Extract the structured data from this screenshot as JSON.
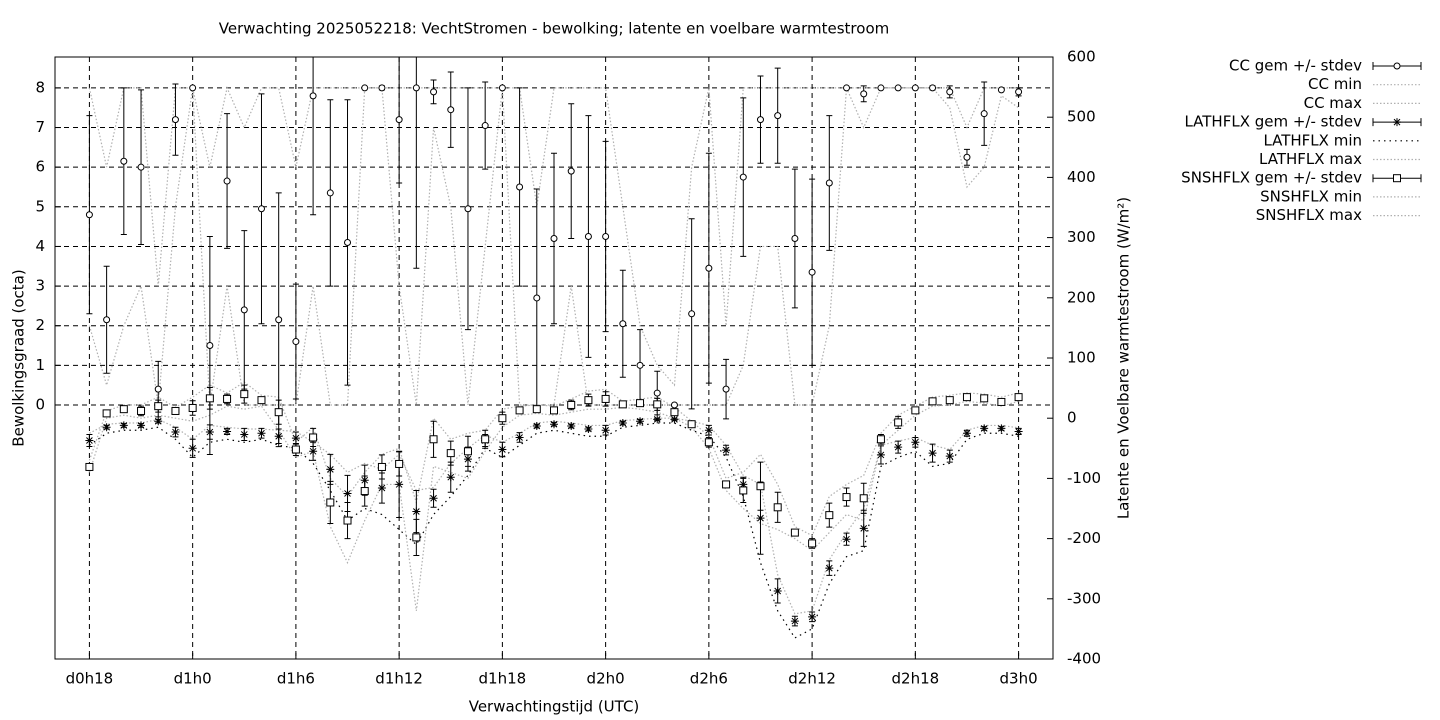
{
  "chart_data": {
    "type": "errorbar-line",
    "title": "Verwachting 2025052218: VechtStromen - bewolking; latente en voelbare warmtestroom",
    "x_label": "Verwachtingstijd (UTC)",
    "y_label": "Bewolkingsgraad (octa)",
    "y2_label": "Latente en Voelbare warmtestroom (W/m²)",
    "x": [
      18,
      19,
      20,
      21,
      22,
      23,
      24,
      25,
      26,
      27,
      28,
      29,
      30,
      31,
      32,
      33,
      34,
      35,
      36,
      37,
      38,
      39,
      40,
      41,
      42,
      43,
      44,
      45,
      46,
      47,
      48,
      49,
      50,
      51,
      52,
      53,
      54,
      55,
      56,
      57,
      58,
      59,
      60,
      61,
      62,
      63,
      64,
      65,
      66,
      67,
      68,
      69,
      70,
      71,
      72
    ],
    "xlim": [
      16,
      74
    ],
    "xticks": [
      {
        "value": 18,
        "label": "d0h18"
      },
      {
        "value": 24,
        "label": "d1h0"
      },
      {
        "value": 30,
        "label": "d1h6"
      },
      {
        "value": 36,
        "label": "d1h12"
      },
      {
        "value": 42,
        "label": "d1h18"
      },
      {
        "value": 48,
        "label": "d2h0"
      },
      {
        "value": 54,
        "label": "d2h6"
      },
      {
        "value": 60,
        "label": "d2h12"
      },
      {
        "value": 66,
        "label": "d2h18"
      },
      {
        "value": 72,
        "label": "d3h0"
      }
    ],
    "ylim": [
      -6.41,
      8.78
    ],
    "yticks": [
      0,
      1,
      2,
      3,
      4,
      5,
      6,
      7,
      8
    ],
    "y2lim": [
      -400,
      600
    ],
    "y2ticks": [
      -400,
      -300,
      -200,
      -100,
      0,
      100,
      200,
      300,
      400,
      500,
      600
    ],
    "grid": true,
    "legend": "right",
    "series": [
      {
        "name": "CC gem +/- stdev",
        "color": "#000000",
        "marker": "circle",
        "axis": "y",
        "values": [
          4.8,
          2.15,
          6.15,
          6.0,
          0.4,
          7.2,
          8.0,
          1.5,
          5.65,
          2.4,
          4.95,
          2.15,
          1.6,
          7.8,
          5.35,
          4.1,
          8.0,
          8.0,
          7.2,
          8.0,
          7.9,
          7.45,
          4.95,
          7.05,
          8.0,
          5.5,
          2.7,
          4.2,
          5.9,
          4.25,
          4.25,
          2.05,
          1.0,
          0.3,
          0.0,
          2.3,
          3.45,
          0.4,
          5.75,
          7.2,
          7.3,
          4.2,
          3.35,
          5.6,
          8.0,
          7.85,
          8.0,
          8.0,
          8.0,
          8.0,
          7.9,
          6.25,
          7.35,
          7.95,
          7.9
        ],
        "errors": [
          2.5,
          1.35,
          1.85,
          1.95,
          0.7,
          0.9,
          0,
          2.75,
          1.7,
          2.0,
          2.9,
          3.2,
          1.45,
          3.0,
          2.35,
          3.6,
          0,
          0.05,
          1.6,
          4.55,
          0.3,
          0.95,
          3.05,
          1.1,
          0,
          2.5,
          2.75,
          2.15,
          1.7,
          3.05,
          2.4,
          1.35,
          0.9,
          0.55,
          0,
          2.4,
          2.9,
          0.75,
          2.0,
          1.1,
          1.2,
          1.75,
          2.35,
          1.7,
          0,
          0.2,
          0,
          0,
          0,
          0.05,
          0.15,
          0.2,
          0.8,
          0,
          0.1
        ]
      },
      {
        "name": "CC min",
        "color": "#b0b0b0",
        "style": "dotted",
        "axis": "y",
        "values": [
          2,
          0.5,
          2,
          3,
          0,
          5,
          8,
          0,
          3,
          0,
          0,
          0,
          0,
          3,
          0,
          0,
          8,
          8,
          3,
          0,
          7,
          5,
          0,
          4,
          8,
          0,
          0,
          0,
          3,
          0,
          0,
          0,
          0,
          0,
          0,
          0,
          0,
          0,
          1,
          4,
          4,
          0,
          0,
          2,
          8,
          7,
          8,
          8,
          8,
          8,
          7.5,
          5.5,
          6,
          7.8,
          7.5
        ]
      },
      {
        "name": "CC max",
        "color": "#b0b0b0",
        "style": "dotted",
        "axis": "y",
        "values": [
          8,
          6,
          8,
          8,
          3,
          8,
          8,
          6,
          8,
          7,
          8,
          8,
          6,
          8,
          8,
          8,
          8,
          8,
          8,
          8,
          8,
          8,
          8,
          8,
          8,
          8,
          5,
          8,
          8,
          8,
          8,
          5,
          2,
          1,
          0.5,
          6,
          8,
          2,
          8,
          8,
          8,
          8,
          8,
          8,
          8,
          8,
          8,
          8,
          8,
          8,
          8,
          7,
          8,
          8,
          8
        ]
      },
      {
        "name": "LATHFLX gem +/- stdev",
        "color": "#000000",
        "marker": "star",
        "axis": "y2",
        "values": [
          -37,
          -15,
          -12,
          -12,
          -5,
          -23,
          -50,
          -23,
          -22,
          -27,
          -25,
          -30,
          -33,
          -55,
          -85,
          -125,
          -103,
          -116,
          -110,
          -155,
          -133,
          -98,
          -68,
          -37,
          -52,
          -32,
          -13,
          -10,
          -13,
          -18,
          -20,
          -8,
          -5,
          -2,
          -2,
          -10,
          -20,
          -53,
          -110,
          -166,
          -287,
          -337,
          -330,
          -249,
          -201,
          -183,
          -61,
          -48,
          -40,
          -58,
          -63,
          -25,
          -17,
          -17,
          -22
        ],
        "errors": [
          10,
          3,
          3,
          3,
          3,
          8,
          15,
          12,
          5,
          10,
          8,
          12,
          10,
          15,
          25,
          30,
          25,
          25,
          55,
          35,
          15,
          25,
          20,
          10,
          12,
          8,
          3,
          3,
          3,
          3,
          8,
          3,
          3,
          2,
          2,
          3,
          8,
          8,
          12,
          60,
          20,
          8,
          8,
          12,
          10,
          30,
          15,
          10,
          8,
          15,
          10,
          5,
          3,
          3,
          5
        ]
      },
      {
        "name": "LATHFLX min",
        "color": "#000000",
        "style": "dotted",
        "axis": "y2",
        "values": [
          -45,
          -25,
          -20,
          -20,
          -15,
          -35,
          -65,
          -40,
          -35,
          -40,
          -35,
          -45,
          -50,
          -75,
          -120,
          -170,
          -150,
          -160,
          -185,
          -210,
          -160,
          -130,
          -95,
          -50,
          -65,
          -45,
          -25,
          -20,
          -25,
          -30,
          -30,
          -15,
          -12,
          -8,
          -8,
          -20,
          -30,
          -65,
          -130,
          -240,
          -320,
          -365,
          -350,
          -275,
          -230,
          -220,
          -80,
          -65,
          -55,
          -80,
          -75,
          -35,
          -25,
          -25,
          -30
        ]
      },
      {
        "name": "LATHFLX max",
        "color": "#b0b0b0",
        "style": "dotted",
        "axis": "y2",
        "values": [
          -25,
          -10,
          -8,
          -8,
          -2,
          -15,
          -35,
          -12,
          -15,
          -18,
          -18,
          -20,
          -22,
          -40,
          -60,
          -90,
          -75,
          -85,
          -60,
          -120,
          -115,
          -75,
          -50,
          -28,
          -40,
          -25,
          -8,
          -5,
          -8,
          -12,
          -12,
          -4,
          -2,
          0,
          0,
          -5,
          -12,
          -45,
          -95,
          -110,
          -260,
          -325,
          -320,
          -235,
          -190,
          -150,
          -45,
          -38,
          -32,
          -45,
          -52,
          -20,
          -12,
          -12,
          -16
        ]
      },
      {
        "name": "SNSHFLX gem +/- stdev",
        "color": "#000000",
        "marker": "square",
        "axis": "y2",
        "values": [
          -81,
          8,
          15,
          12,
          20,
          12,
          17,
          33,
          32,
          40,
          30,
          10,
          -52,
          -32,
          -140,
          -170,
          -121,
          -81,
          -76,
          -198,
          -35,
          -58,
          -55,
          -35,
          0,
          13,
          15,
          13,
          22,
          30,
          32,
          23,
          25,
          23,
          10,
          -10,
          -40,
          -110,
          -120,
          -113,
          -148,
          -190,
          -208,
          -161,
          -131,
          -133,
          -35,
          -7,
          13,
          28,
          30,
          35,
          33,
          27,
          35
        ],
        "errors": [
          5,
          3,
          5,
          8,
          10,
          5,
          12,
          18,
          8,
          15,
          5,
          20,
          10,
          15,
          35,
          30,
          25,
          20,
          20,
          30,
          30,
          20,
          25,
          15,
          10,
          5,
          5,
          5,
          8,
          10,
          12,
          3,
          5,
          10,
          5,
          3,
          8,
          5,
          20,
          40,
          25,
          5,
          8,
          20,
          15,
          25,
          8,
          10,
          5,
          5,
          5,
          5,
          5,
          5,
          5
        ]
      },
      {
        "name": "SNSHFLX min",
        "color": "#b0b0b0",
        "style": "dotted",
        "axis": "y2",
        "values": [
          -90,
          0,
          5,
          0,
          5,
          0,
          -5,
          5,
          20,
          15,
          20,
          -20,
          -65,
          -55,
          -180,
          -240,
          -170,
          -110,
          -110,
          -320,
          -80,
          -90,
          -100,
          -55,
          -15,
          5,
          8,
          5,
          10,
          15,
          15,
          18,
          15,
          10,
          0,
          -15,
          -50,
          -120,
          -150,
          -175,
          -185,
          -200,
          -220,
          -190,
          -160,
          -170,
          -45,
          -20,
          5,
          20,
          22,
          28,
          25,
          20,
          28
        ]
      },
      {
        "name": "SNSHFLX max",
        "color": "#b0b0b0",
        "style": "dotted",
        "axis": "y2",
        "values": [
          -70,
          12,
          22,
          22,
          35,
          18,
          35,
          55,
          42,
          60,
          38,
          35,
          -40,
          -15,
          -100,
          -130,
          -90,
          -60,
          -50,
          -140,
          0,
          -35,
          -25,
          -20,
          15,
          20,
          22,
          20,
          32,
          45,
          48,
          28,
          32,
          35,
          18,
          -5,
          -30,
          -100,
          -90,
          -60,
          -110,
          -180,
          -195,
          -130,
          -110,
          -95,
          -25,
          5,
          20,
          35,
          38,
          42,
          40,
          35,
          42
        ]
      }
    ]
  }
}
